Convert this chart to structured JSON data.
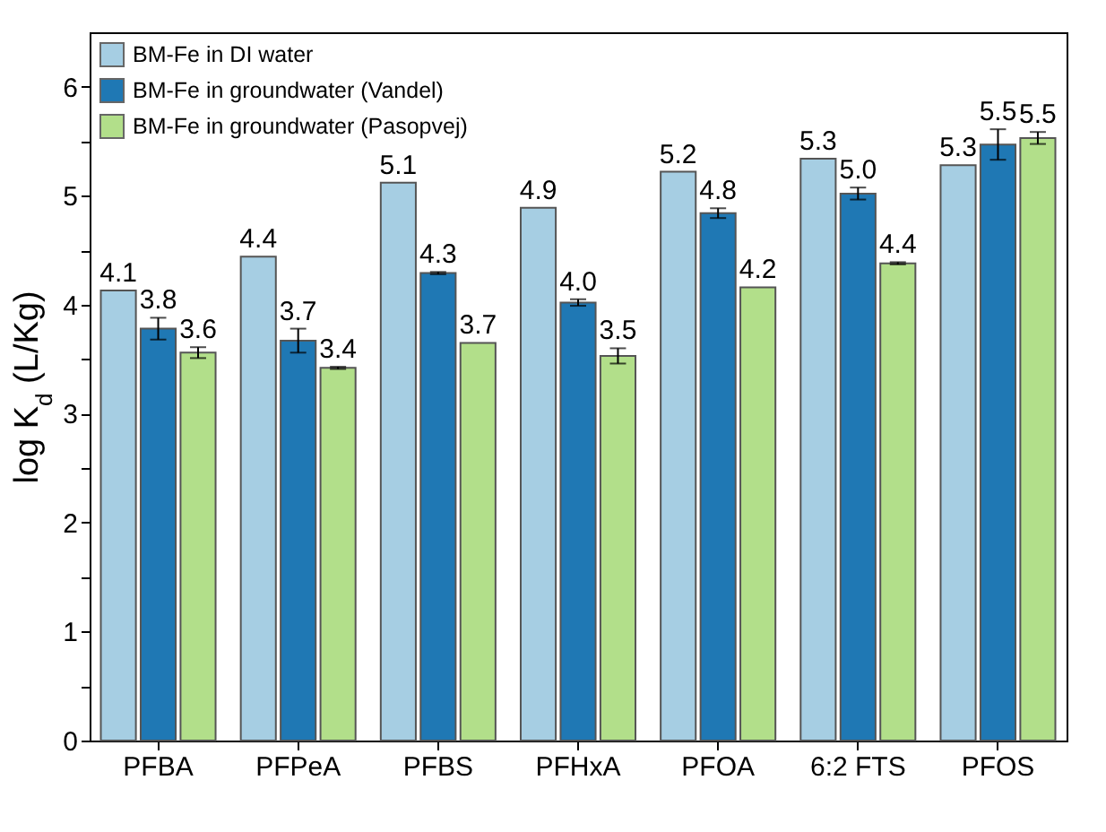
{
  "chart_data": {
    "type": "bar",
    "ylabel": "log K$_{d}$ (L/Kg)",
    "categories": [
      "PFBA",
      "PFPeA",
      "PFBS",
      "PFHxA",
      "PFOA",
      "6:2 FTS",
      "PFOS"
    ],
    "series": [
      {
        "name": "BM-Fe in DI water",
        "color": "#a6cee3",
        "values": [
          4.13,
          4.44,
          5.12,
          4.89,
          5.22,
          5.34,
          5.28
        ],
        "value_labels": [
          "4.1",
          "4.4",
          "5.1",
          "4.9",
          "5.2",
          "5.3",
          "5.3"
        ]
      },
      {
        "name": "BM-Fe in groundwater (Vandel)",
        "color": "#1f78b4",
        "values": [
          3.78,
          3.67,
          4.29,
          4.02,
          4.84,
          5.02,
          5.47
        ],
        "errors": [
          0.1,
          0.11,
          0.01,
          0.03,
          0.045,
          0.055,
          0.14
        ],
        "value_labels": [
          "3.8",
          "3.7",
          "4.3",
          "4.0",
          "4.8",
          "5.0",
          "5.5"
        ]
      },
      {
        "name": "BM-Fe in groundwater (Pasopvej)",
        "color": "#b2df8a",
        "values": [
          3.56,
          3.42,
          3.65,
          3.53,
          4.16,
          4.38,
          5.53
        ],
        "errors": [
          0.05,
          0.01,
          null,
          0.07,
          null,
          0.01,
          0.055
        ],
        "value_labels": [
          "3.6",
          "3.4",
          "3.7",
          "3.5",
          "4.2",
          "4.4",
          "5.5"
        ]
      }
    ],
    "ylim": [
      0,
      6.5
    ],
    "yticks": [
      0,
      {
        "value": 0.5,
        "label": null
      },
      1,
      {
        "value": 1.5,
        "label": null
      },
      2,
      {
        "value": 2.5,
        "label": null
      },
      3,
      {
        "value": 3.5,
        "label": null
      },
      4,
      {
        "value": 4.5,
        "label": null
      },
      5,
      {
        "value": 5.5,
        "label": null
      },
      6
    ],
    "grid": false,
    "legend": "top left"
  }
}
